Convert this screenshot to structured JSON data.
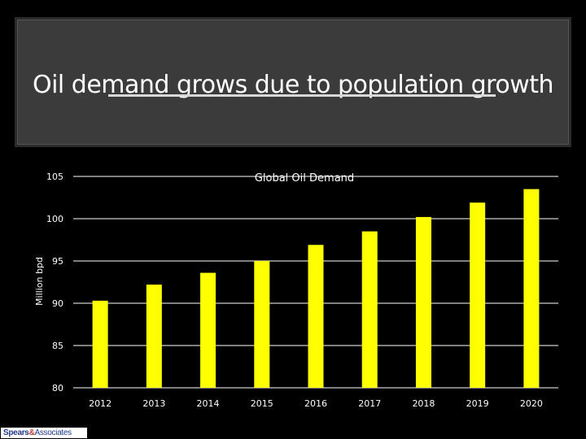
{
  "slide": {
    "title": "Oil demand grows due to population growth"
  },
  "logo": {
    "company": "Spears",
    "ampersand": "&",
    "suffix": "Associates"
  },
  "colors": {
    "background": "#000000",
    "bar": "#ffff00",
    "gridline": "#ffffff",
    "text": "#ffffff"
  },
  "chart_data": {
    "type": "bar",
    "title": "Global Oil Demand",
    "xlabel": "",
    "ylabel": "Million bpd",
    "ylim": [
      80,
      105
    ],
    "yticks": [
      80,
      85,
      90,
      95,
      100,
      105
    ],
    "grid": true,
    "categories": [
      "2012",
      "2013",
      "2014",
      "2015",
      "2016",
      "2017",
      "2018",
      "2019",
      "2020"
    ],
    "values": [
      90.3,
      92.2,
      93.6,
      95.0,
      96.9,
      98.5,
      100.2,
      101.9,
      103.5
    ]
  }
}
